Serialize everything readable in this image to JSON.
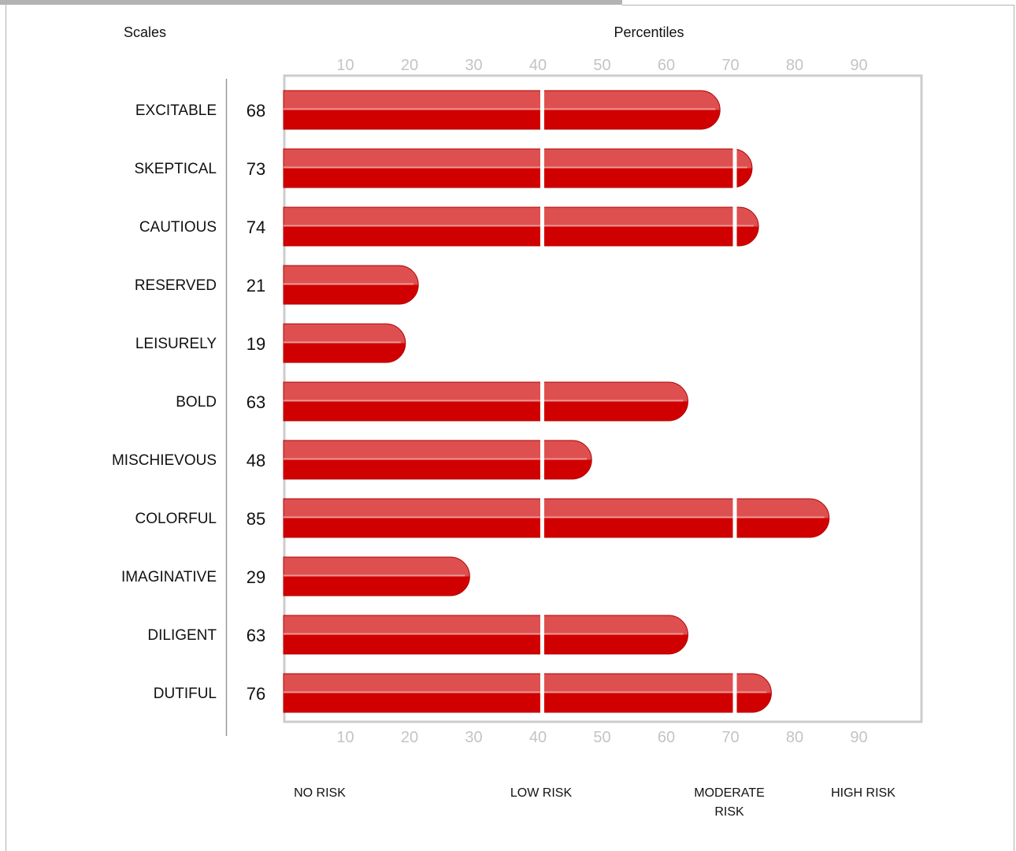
{
  "chart_data": {
    "type": "bar",
    "orientation": "horizontal",
    "title": "",
    "xlabel": "Percentiles",
    "ylabel": "Scales",
    "xlim": [
      0,
      100
    ],
    "xticks": [
      "10",
      "20",
      "30",
      "40",
      "50",
      "60",
      "70",
      "80",
      "90"
    ],
    "tick_values": [
      10,
      20,
      30,
      40,
      50,
      60,
      70,
      80,
      90
    ],
    "categories": [
      "EXCITABLE",
      "SKEPTICAL",
      "CAUTIOUS",
      "RESERVED",
      "LEISURELY",
      "BOLD",
      "MISCHIEVOUS",
      "COLORFUL",
      "IMAGINATIVE",
      "DILIGENT",
      "DUTIFUL"
    ],
    "values": [
      68,
      73,
      74,
      21,
      19,
      63,
      48,
      85,
      29,
      63,
      76
    ],
    "value_labels": [
      "68",
      "73",
      "74",
      "21",
      "19",
      "63",
      "48",
      "85",
      "29",
      "63",
      "76"
    ],
    "segment_breaks": [
      40,
      70
    ],
    "zones": [
      {
        "label": "NO RISK",
        "from": 0,
        "to": 39
      },
      {
        "label": "LOW RISK",
        "from": 40,
        "to": 69
      },
      {
        "label": "MODERATE RISK",
        "from": 70,
        "to": 89
      },
      {
        "label": "HIGH RISK",
        "from": 90,
        "to": 100
      }
    ],
    "bar_colors": {
      "top": "#de5050",
      "bottom": "#d10000",
      "stroke": "#b00000",
      "highlight": "#f0a6a6"
    },
    "frame_color": "#cccccc",
    "grid": false,
    "legend": "none"
  }
}
